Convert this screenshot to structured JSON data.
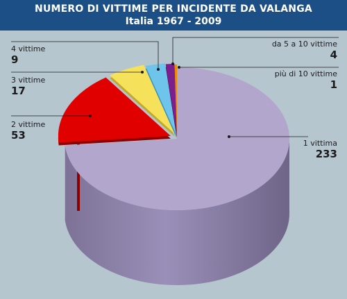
{
  "header": {
    "title": "NUMERO DI VITTIME PER INCIDENTE DA VALANGA",
    "subtitle": "Italia 1967 - 2009"
  },
  "colors": {
    "background": "#b6c6cf",
    "header": "#1c4f86"
  },
  "chart_data": {
    "type": "pie",
    "title": "NUMERO DI VITTIME PER INCIDENTE DA VALANGA",
    "subtitle": "Italia 1967 - 2009",
    "three_d": true,
    "categories": [
      "1 vittima",
      "2 vittime",
      "3 vittime",
      "4 vittime",
      "da 5 a 10  vittime",
      "più di 10 vittime"
    ],
    "values": [
      233,
      53,
      17,
      9,
      4,
      1
    ],
    "colors": [
      "#b3a6cc",
      "#e00000",
      "#f6e15a",
      "#6ec4ea",
      "#7a1f8c",
      "#f08c00"
    ],
    "side_colors": [
      "#8a7ea6",
      "#8e0000",
      "#bfa92e",
      "#3e92b8",
      "#4c0f58",
      "#b06000"
    ]
  }
}
